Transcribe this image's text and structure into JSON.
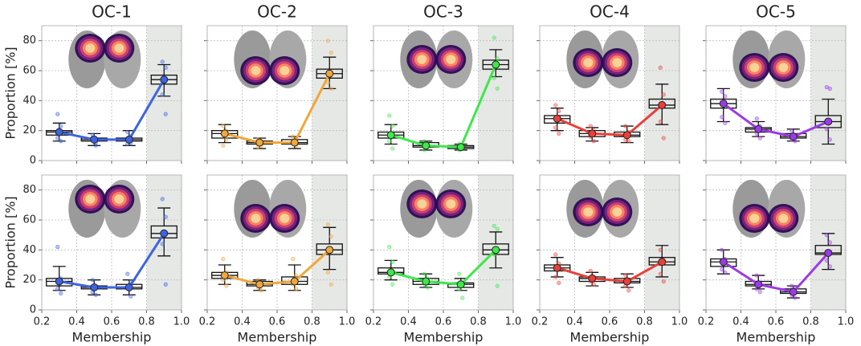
{
  "chart_data": [
    {
      "type": "line",
      "title": "OC-1",
      "ylabel": "Proportion [%]",
      "color": "#3d64e0",
      "x": [
        0.3,
        0.5,
        0.7,
        0.9
      ],
      "values": [
        19,
        14,
        14,
        54
      ],
      "boxes": [
        [
          13,
          17,
          19,
          20,
          25
        ],
        [
          10,
          13,
          14,
          15,
          18
        ],
        [
          10,
          13,
          14,
          15,
          20
        ],
        [
          43,
          51,
          54,
          57,
          64
        ]
      ],
      "points": [
        [
          31,
          23,
          15,
          13
        ],
        [
          17,
          12,
          15,
          10
        ],
        [
          19,
          16,
          11,
          12
        ],
        [
          66,
          62,
          44,
          31
        ]
      ],
      "xlim": [
        0.2,
        1
      ],
      "ylim": [
        0,
        90
      ],
      "xticks": [
        0.2,
        0.4,
        0.6,
        0.8,
        1
      ],
      "yticks": [
        0,
        20,
        40,
        60,
        80
      ],
      "grid": true,
      "shade": [
        0.8,
        1
      ]
    },
    {
      "type": "line",
      "title": "OC-2",
      "color": "#f0a73a",
      "x": [
        0.3,
        0.5,
        0.7,
        0.9
      ],
      "values": [
        18,
        12,
        12,
        58
      ],
      "boxes": [
        [
          12,
          15,
          18,
          20,
          24
        ],
        [
          8,
          11,
          12,
          13,
          15
        ],
        [
          8,
          11,
          12,
          14,
          16
        ],
        [
          48,
          55,
          58,
          61,
          69
        ]
      ],
      "points": [
        [
          23,
          14,
          10,
          20
        ],
        [
          14,
          10,
          9,
          12
        ],
        [
          16,
          10,
          13,
          11
        ],
        [
          80,
          72,
          52,
          48
        ]
      ],
      "xlim": [
        0.2,
        1
      ],
      "ylim": [
        0,
        90
      ],
      "xticks": [
        0.2,
        0.4,
        0.6,
        0.8,
        1
      ],
      "yticks": [
        0,
        20,
        40,
        60,
        80
      ],
      "grid": true,
      "shade": [
        0.8,
        1
      ]
    },
    {
      "type": "line",
      "title": "OC-3",
      "color": "#3de84a",
      "x": [
        0.3,
        0.5,
        0.7,
        0.9
      ],
      "values": [
        17,
        10,
        9,
        64
      ],
      "boxes": [
        [
          11,
          15,
          17,
          19,
          24
        ],
        [
          7,
          9,
          10,
          12,
          13
        ],
        [
          7,
          8,
          9,
          10,
          11
        ],
        [
          56,
          61,
          64,
          67,
          74
        ]
      ],
      "points": [
        [
          30,
          23,
          13,
          8
        ],
        [
          13,
          9,
          7,
          11
        ],
        [
          11,
          8,
          7,
          10
        ],
        [
          82,
          68,
          55,
          48
        ]
      ],
      "xlim": [
        0.2,
        1
      ],
      "ylim": [
        0,
        90
      ],
      "xticks": [
        0.2,
        0.4,
        0.6,
        0.8,
        1
      ],
      "yticks": [
        0,
        20,
        40,
        60,
        80
      ],
      "grid": true,
      "shade": [
        0.8,
        1
      ]
    },
    {
      "type": "line",
      "title": "OC-4",
      "color": "#e8403a",
      "x": [
        0.3,
        0.5,
        0.7,
        0.9
      ],
      "values": [
        28,
        18,
        17,
        37
      ],
      "boxes": [
        [
          20,
          25,
          28,
          30,
          35
        ],
        [
          13,
          16,
          18,
          20,
          22
        ],
        [
          12,
          16,
          17,
          19,
          23
        ],
        [
          24,
          35,
          37,
          41,
          51
        ]
      ],
      "points": [
        [
          37,
          33,
          22,
          18
        ],
        [
          23,
          20,
          16,
          13
        ],
        [
          23,
          19,
          14,
          13
        ],
        [
          62,
          44,
          26,
          15
        ]
      ],
      "xlim": [
        0.2,
        1
      ],
      "ylim": [
        0,
        90
      ],
      "xticks": [
        0.2,
        0.4,
        0.6,
        0.8,
        1
      ],
      "yticks": [
        0,
        20,
        40,
        60,
        80
      ],
      "grid": true,
      "shade": [
        0.8,
        1
      ]
    },
    {
      "type": "line",
      "title": "OC-5",
      "color": "#9b3ae8",
      "x": [
        0.3,
        0.5,
        0.7,
        0.9
      ],
      "values": [
        38,
        21,
        16,
        26
      ],
      "boxes": [
        [
          26,
          35,
          38,
          41,
          48
        ],
        [
          16,
          19,
          21,
          22,
          26
        ],
        [
          13,
          15,
          16,
          18,
          21
        ],
        [
          11,
          22,
          26,
          30,
          41
        ]
      ],
      "points": [
        [
          46,
          43,
          29,
          25
        ],
        [
          28,
          23,
          18,
          15
        ],
        [
          20,
          17,
          14,
          13
        ],
        [
          49,
          48,
          21,
          14
        ]
      ],
      "xlim": [
        0.2,
        1
      ],
      "ylim": [
        0,
        90
      ],
      "xticks": [
        0.2,
        0.4,
        0.6,
        0.8,
        1
      ],
      "yticks": [
        0,
        20,
        40,
        60,
        80
      ],
      "grid": true,
      "shade": [
        0.8,
        1
      ]
    },
    {
      "type": "line",
      "ylabel": "Proportion [%]",
      "xlabel": "Membership",
      "color": "#3d64e0",
      "x": [
        0.3,
        0.5,
        0.7,
        0.9
      ],
      "values": [
        19,
        15,
        15,
        51
      ],
      "boxes": [
        [
          13,
          16,
          19,
          21,
          29
        ],
        [
          10,
          14,
          15,
          16,
          20
        ],
        [
          10,
          14,
          15,
          17,
          20
        ],
        [
          36,
          48,
          51,
          56,
          68
        ]
      ],
      "points": [
        [
          42,
          21,
          14,
          11
        ],
        [
          20,
          16,
          12,
          10
        ],
        [
          24,
          19,
          15,
          9
        ],
        [
          74,
          62,
          44,
          17
        ]
      ],
      "xlim": [
        0.2,
        1
      ],
      "ylim": [
        0,
        90
      ],
      "xticks": [
        0.2,
        0.4,
        0.6,
        0.8,
        {
          "value": 1,
          "label": "1.0"
        }
      ],
      "yticks": [
        0,
        20,
        40,
        60,
        80
      ],
      "grid": true,
      "shade": [
        0.8,
        1
      ]
    },
    {
      "type": "line",
      "xlabel": "Membership",
      "color": "#f0a73a",
      "x": [
        0.3,
        0.5,
        0.7,
        0.9
      ],
      "values": [
        23,
        17,
        19,
        40
      ],
      "boxes": [
        [
          17,
          21,
          23,
          25,
          30
        ],
        [
          13,
          16,
          17,
          19,
          20
        ],
        [
          13,
          17,
          19,
          22,
          30
        ],
        [
          27,
          37,
          40,
          44,
          55
        ]
      ],
      "points": [
        [
          34,
          25,
          20,
          16
        ],
        [
          20,
          18,
          15,
          13
        ],
        [
          34,
          23,
          17,
          14
        ],
        [
          57,
          49,
          25,
          17
        ]
      ],
      "xlim": [
        0.2,
        1
      ],
      "ylim": [
        0,
        90
      ],
      "xticks": [
        0.2,
        0.4,
        0.6,
        0.8,
        {
          "value": 1,
          "label": "1.0"
        }
      ],
      "yticks": [
        0,
        20,
        40,
        60,
        80
      ],
      "grid": true,
      "shade": [
        0.8,
        1
      ]
    },
    {
      "type": "line",
      "xlabel": "Membership",
      "color": "#3de84a",
      "x": [
        0.3,
        0.5,
        0.7,
        0.9
      ],
      "values": [
        25,
        19,
        17,
        40
      ],
      "boxes": [
        [
          20,
          24,
          25,
          28,
          33
        ],
        [
          15,
          17,
          19,
          21,
          24
        ],
        [
          13,
          15,
          17,
          18,
          21
        ],
        [
          28,
          37,
          40,
          44,
          52
        ]
      ],
      "points": [
        [
          42,
          32,
          22,
          17
        ],
        [
          24,
          21,
          17,
          15
        ],
        [
          24,
          18,
          14,
          8
        ],
        [
          56,
          54,
          37,
          16
        ]
      ],
      "xlim": [
        0.2,
        1
      ],
      "ylim": [
        0,
        90
      ],
      "xticks": [
        0.2,
        0.4,
        0.6,
        0.8,
        {
          "value": 1,
          "label": "1.0"
        }
      ],
      "yticks": [
        0,
        20,
        40,
        60,
        80
      ],
      "grid": true,
      "shade": [
        0.8,
        1
      ]
    },
    {
      "type": "line",
      "xlabel": "Membership",
      "color": "#e8403a",
      "x": [
        0.3,
        0.5,
        0.7,
        0.9
      ],
      "values": [
        28,
        21,
        19,
        32
      ],
      "boxes": [
        [
          22,
          26,
          28,
          30,
          35
        ],
        [
          16,
          19,
          21,
          22,
          25
        ],
        [
          15,
          18,
          19,
          21,
          24
        ],
        [
          22,
          30,
          32,
          35,
          43
        ]
      ],
      "points": [
        [
          37,
          31,
          22,
          18
        ],
        [
          26,
          22,
          19,
          17
        ],
        [
          23,
          20,
          16,
          13
        ],
        [
          40,
          33,
          24,
          19
        ]
      ],
      "xlim": [
        0.2,
        1
      ],
      "ylim": [
        0,
        90
      ],
      "xticks": [
        0.2,
        0.4,
        0.6,
        0.8,
        {
          "value": 1,
          "label": "1.0"
        }
      ],
      "yticks": [
        0,
        20,
        40,
        60,
        80
      ],
      "grid": true,
      "shade": [
        0.8,
        1
      ]
    },
    {
      "type": "line",
      "xlabel": "Membership",
      "color": "#9b3ae8",
      "x": [
        0.3,
        0.5,
        0.7,
        0.9
      ],
      "values": [
        32,
        17,
        12,
        38
      ],
      "boxes": [
        [
          24,
          29,
          32,
          34,
          40
        ],
        [
          14,
          16,
          17,
          19,
          23
        ],
        [
          8,
          11,
          12,
          14,
          16
        ],
        [
          27,
          37,
          38,
          43,
          51
        ]
      ],
      "points": [
        [
          40,
          34,
          27,
          25
        ],
        [
          23,
          18,
          14,
          12
        ],
        [
          16,
          14,
          10,
          8
        ],
        [
          50,
          45,
          33,
          29
        ]
      ],
      "xlim": [
        0.2,
        1
      ],
      "ylim": [
        0,
        90
      ],
      "xticks": [
        0.2,
        0.4,
        0.6,
        0.8,
        {
          "value": 1,
          "label": "1.0"
        }
      ],
      "yticks": [
        0,
        20,
        40,
        60,
        80
      ],
      "grid": true,
      "shade": [
        0.8,
        1
      ]
    }
  ]
}
